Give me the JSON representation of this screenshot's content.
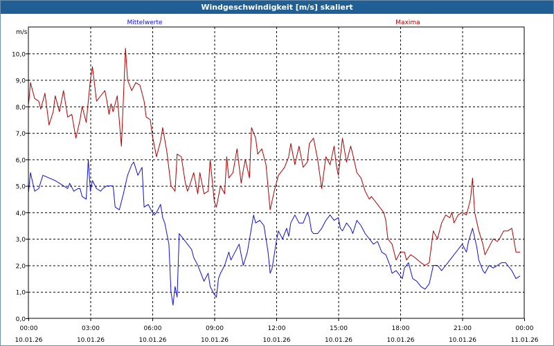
{
  "window": {
    "title": "Windgeschwindigkeit [m/s] skaliert"
  },
  "colors": {
    "title_bar": "#1f5f93",
    "mean": "#1010cc",
    "max": "#aa0000",
    "grid": "#000000"
  },
  "chart_data": {
    "type": "line",
    "title": "Windgeschwindigkeit [m/s] skaliert",
    "ylabel": "m/s",
    "xlabel": "",
    "ylim": [
      0,
      11
    ],
    "xlim": [
      0,
      24
    ],
    "grid": true,
    "yticks": [
      {
        "v": 0,
        "label": "0,0"
      },
      {
        "v": 1,
        "label": "1,0"
      },
      {
        "v": 2,
        "label": "2,0"
      },
      {
        "v": 3,
        "label": "3,0"
      },
      {
        "v": 4,
        "label": "4,0"
      },
      {
        "v": 5,
        "label": "5,0"
      },
      {
        "v": 6,
        "label": "6,0"
      },
      {
        "v": 7,
        "label": "7,0"
      },
      {
        "v": 8,
        "label": "8,0"
      },
      {
        "v": 9,
        "label": "9,0"
      },
      {
        "v": 10,
        "label": "10,0"
      }
    ],
    "xticks": [
      {
        "h": 0,
        "time": "00:00",
        "date": "10.01.26"
      },
      {
        "h": 3,
        "time": "03:00",
        "date": "10.01.26"
      },
      {
        "h": 6,
        "time": "06:00",
        "date": "10.01.26"
      },
      {
        "h": 9,
        "time": "09:00",
        "date": "10.01.26"
      },
      {
        "h": 12,
        "time": "12:00",
        "date": "10.01.26"
      },
      {
        "h": 15,
        "time": "15:00",
        "date": "10.01.26"
      },
      {
        "h": 18,
        "time": "18:00",
        "date": "10.01.26"
      },
      {
        "h": 21,
        "time": "21:00",
        "date": "10.01.26"
      },
      {
        "h": 24,
        "time": "00:00",
        "date": "11.01.26"
      }
    ],
    "series": [
      {
        "name": "Mittelwerte",
        "color": "#1010cc",
        "legend_position": "top-left",
        "points": [
          [
            0.0,
            4.7
          ],
          [
            0.1,
            5.5
          ],
          [
            0.3,
            4.8
          ],
          [
            0.5,
            4.9
          ],
          [
            0.7,
            5.4
          ],
          [
            1.0,
            5.3
          ],
          [
            1.3,
            5.2
          ],
          [
            1.5,
            5.1
          ],
          [
            1.7,
            5.0
          ],
          [
            1.9,
            4.9
          ],
          [
            2.0,
            5.1
          ],
          [
            2.2,
            4.8
          ],
          [
            2.4,
            4.9
          ],
          [
            2.5,
            4.9
          ],
          [
            2.6,
            4.6
          ],
          [
            2.8,
            4.5
          ],
          [
            2.9,
            6.0
          ],
          [
            3.0,
            4.8
          ],
          [
            3.1,
            5.2
          ],
          [
            3.3,
            4.9
          ],
          [
            3.5,
            4.8
          ],
          [
            3.6,
            4.9
          ],
          [
            3.8,
            5.0
          ],
          [
            4.0,
            5.0
          ],
          [
            4.1,
            5.0
          ],
          [
            4.2,
            4.2
          ],
          [
            4.4,
            4.1
          ],
          [
            4.6,
            4.7
          ],
          [
            4.8,
            5.4
          ],
          [
            5.0,
            5.8
          ],
          [
            5.1,
            5.9
          ],
          [
            5.3,
            5.4
          ],
          [
            5.5,
            5.7
          ],
          [
            5.6,
            4.2
          ],
          [
            5.8,
            4.3
          ],
          [
            6.0,
            4.0
          ],
          [
            6.1,
            3.9
          ],
          [
            6.2,
            4.0
          ],
          [
            6.4,
            4.3
          ],
          [
            6.5,
            3.8
          ],
          [
            6.6,
            3.6
          ],
          [
            6.8,
            2.8
          ],
          [
            6.9,
            1.0
          ],
          [
            7.0,
            0.5
          ],
          [
            7.1,
            1.2
          ],
          [
            7.2,
            0.8
          ],
          [
            7.3,
            3.2
          ],
          [
            7.5,
            3.0
          ],
          [
            7.7,
            2.8
          ],
          [
            7.9,
            2.6
          ],
          [
            8.0,
            2.3
          ],
          [
            8.2,
            2.0
          ],
          [
            8.3,
            1.8
          ],
          [
            8.5,
            1.4
          ],
          [
            8.7,
            1.7
          ],
          [
            8.8,
            1.2
          ],
          [
            9.0,
            0.9
          ],
          [
            9.1,
            0.8
          ],
          [
            9.2,
            1.5
          ],
          [
            9.3,
            1.7
          ],
          [
            9.5,
            2.0
          ],
          [
            9.7,
            2.5
          ],
          [
            9.8,
            2.2
          ],
          [
            10.0,
            2.5
          ],
          [
            10.2,
            2.8
          ],
          [
            10.4,
            2.0
          ],
          [
            10.6,
            2.5
          ],
          [
            10.9,
            3.9
          ],
          [
            11.0,
            3.6
          ],
          [
            11.2,
            3.7
          ],
          [
            11.4,
            3.5
          ],
          [
            11.6,
            2.5
          ],
          [
            11.7,
            1.7
          ],
          [
            11.8,
            1.9
          ],
          [
            12.0,
            2.9
          ],
          [
            12.1,
            3.3
          ],
          [
            12.3,
            3.0
          ],
          [
            12.5,
            3.4
          ],
          [
            12.6,
            3.1
          ],
          [
            12.7,
            3.6
          ],
          [
            12.9,
            3.9
          ],
          [
            13.1,
            3.6
          ],
          [
            13.3,
            3.6
          ],
          [
            13.5,
            4.0
          ],
          [
            13.6,
            3.8
          ],
          [
            13.7,
            3.3
          ],
          [
            13.8,
            3.2
          ],
          [
            14.0,
            3.2
          ],
          [
            14.2,
            3.4
          ],
          [
            14.4,
            3.7
          ],
          [
            14.6,
            3.9
          ],
          [
            14.8,
            3.7
          ],
          [
            15.0,
            3.8
          ],
          [
            15.1,
            3.4
          ],
          [
            15.2,
            3.3
          ],
          [
            15.4,
            3.6
          ],
          [
            15.6,
            3.4
          ],
          [
            15.7,
            3.2
          ],
          [
            15.9,
            3.7
          ],
          [
            16.1,
            3.5
          ],
          [
            16.3,
            3.2
          ],
          [
            16.5,
            3.0
          ],
          [
            16.7,
            2.8
          ],
          [
            16.9,
            2.9
          ],
          [
            17.1,
            2.5
          ],
          [
            17.3,
            2.4
          ],
          [
            17.5,
            2.0
          ],
          [
            17.6,
            1.7
          ],
          [
            17.8,
            1.8
          ],
          [
            18.0,
            1.6
          ],
          [
            18.1,
            1.5
          ],
          [
            18.2,
            1.9
          ],
          [
            18.4,
            2.1
          ],
          [
            18.6,
            1.5
          ],
          [
            18.8,
            1.4
          ],
          [
            19.0,
            1.2
          ],
          [
            19.2,
            1.1
          ],
          [
            19.4,
            1.3
          ],
          [
            19.6,
            2.0
          ],
          [
            19.8,
            2.0
          ],
          [
            20.0,
            1.8
          ],
          [
            20.2,
            2.0
          ],
          [
            20.4,
            2.2
          ],
          [
            20.6,
            2.4
          ],
          [
            20.8,
            2.6
          ],
          [
            21.0,
            2.8
          ],
          [
            21.2,
            2.5
          ],
          [
            21.3,
            2.9
          ],
          [
            21.5,
            3.4
          ],
          [
            21.7,
            2.7
          ],
          [
            21.8,
            2.2
          ],
          [
            22.0,
            1.8
          ],
          [
            22.1,
            1.7
          ],
          [
            22.3,
            2.0
          ],
          [
            22.5,
            1.9
          ],
          [
            22.7,
            2.0
          ],
          [
            22.9,
            2.1
          ],
          [
            23.1,
            2.1
          ],
          [
            23.2,
            2.0
          ],
          [
            23.4,
            1.8
          ],
          [
            23.6,
            1.5
          ],
          [
            23.8,
            1.6
          ]
        ]
      },
      {
        "name": "Maxima",
        "color": "#aa0000",
        "legend_position": "top-right",
        "points": [
          [
            0.0,
            8.0
          ],
          [
            0.1,
            8.9
          ],
          [
            0.3,
            8.3
          ],
          [
            0.5,
            8.2
          ],
          [
            0.6,
            7.9
          ],
          [
            0.8,
            8.5
          ],
          [
            1.0,
            7.3
          ],
          [
            1.2,
            7.8
          ],
          [
            1.3,
            8.4
          ],
          [
            1.5,
            7.8
          ],
          [
            1.7,
            8.6
          ],
          [
            1.9,
            7.6
          ],
          [
            2.1,
            7.7
          ],
          [
            2.3,
            6.8
          ],
          [
            2.5,
            7.5
          ],
          [
            2.6,
            8.0
          ],
          [
            2.8,
            7.4
          ],
          [
            3.0,
            9.0
          ],
          [
            3.1,
            9.5
          ],
          [
            3.3,
            8.2
          ],
          [
            3.5,
            8.4
          ],
          [
            3.7,
            8.6
          ],
          [
            3.8,
            8.2
          ],
          [
            3.9,
            7.7
          ],
          [
            4.0,
            8.1
          ],
          [
            4.1,
            7.8
          ],
          [
            4.3,
            8.4
          ],
          [
            4.5,
            6.5
          ],
          [
            4.7,
            10.2
          ],
          [
            4.8,
            9.0
          ],
          [
            5.0,
            8.6
          ],
          [
            5.2,
            8.9
          ],
          [
            5.4,
            8.8
          ],
          [
            5.6,
            8.2
          ],
          [
            5.7,
            7.6
          ],
          [
            5.9,
            7.5
          ],
          [
            6.0,
            6.9
          ],
          [
            6.2,
            6.1
          ],
          [
            6.4,
            6.7
          ],
          [
            6.5,
            7.2
          ],
          [
            6.7,
            6.3
          ],
          [
            6.9,
            5.0
          ],
          [
            7.1,
            4.8
          ],
          [
            7.2,
            6.2
          ],
          [
            7.4,
            6.1
          ],
          [
            7.6,
            5.1
          ],
          [
            7.7,
            4.8
          ],
          [
            7.8,
            5.0
          ],
          [
            8.0,
            5.5
          ],
          [
            8.2,
            4.7
          ],
          [
            8.3,
            5.5
          ],
          [
            8.5,
            4.7
          ],
          [
            8.7,
            4.8
          ],
          [
            8.8,
            6.0
          ],
          [
            9.0,
            4.4
          ],
          [
            9.1,
            4.2
          ],
          [
            9.3,
            5.0
          ],
          [
            9.5,
            4.7
          ],
          [
            9.6,
            6.1
          ],
          [
            9.7,
            5.3
          ],
          [
            9.9,
            5.5
          ],
          [
            10.1,
            6.4
          ],
          [
            10.3,
            5.1
          ],
          [
            10.4,
            5.6
          ],
          [
            10.5,
            6.0
          ],
          [
            10.7,
            5.3
          ],
          [
            10.8,
            7.2
          ],
          [
            11.0,
            6.8
          ],
          [
            11.1,
            6.2
          ],
          [
            11.3,
            6.4
          ],
          [
            11.5,
            5.8
          ],
          [
            11.7,
            4.1
          ],
          [
            11.9,
            4.8
          ],
          [
            12.1,
            5.4
          ],
          [
            12.3,
            5.6
          ],
          [
            12.4,
            5.7
          ],
          [
            12.6,
            6.1
          ],
          [
            12.7,
            6.6
          ],
          [
            12.9,
            5.8
          ],
          [
            13.1,
            6.5
          ],
          [
            13.3,
            5.7
          ],
          [
            13.5,
            5.9
          ],
          [
            13.6,
            6.6
          ],
          [
            13.8,
            6.8
          ],
          [
            14.0,
            6.0
          ],
          [
            14.2,
            4.9
          ],
          [
            14.4,
            6.1
          ],
          [
            14.6,
            5.8
          ],
          [
            14.8,
            6.5
          ],
          [
            14.9,
            5.8
          ],
          [
            15.0,
            5.4
          ],
          [
            15.1,
            6.1
          ],
          [
            15.2,
            6.8
          ],
          [
            15.4,
            5.9
          ],
          [
            15.6,
            6.5
          ],
          [
            15.7,
            6.2
          ],
          [
            15.9,
            5.5
          ],
          [
            16.1,
            5.3
          ],
          [
            16.3,
            4.8
          ],
          [
            16.5,
            4.5
          ],
          [
            16.6,
            4.6
          ],
          [
            16.8,
            4.4
          ],
          [
            17.0,
            4.2
          ],
          [
            17.2,
            4.0
          ],
          [
            17.3,
            3.7
          ],
          [
            17.4,
            3.0
          ],
          [
            17.6,
            2.8
          ],
          [
            17.8,
            2.2
          ],
          [
            18.0,
            2.5
          ],
          [
            18.2,
            2.5
          ],
          [
            18.3,
            2.2
          ],
          [
            18.5,
            2.4
          ],
          [
            18.7,
            2.3
          ],
          [
            19.0,
            2.1
          ],
          [
            19.2,
            2.0
          ],
          [
            19.4,
            2.1
          ],
          [
            19.6,
            3.3
          ],
          [
            19.8,
            3.0
          ],
          [
            20.0,
            3.6
          ],
          [
            20.2,
            3.9
          ],
          [
            20.4,
            3.8
          ],
          [
            20.5,
            4.0
          ],
          [
            20.6,
            3.6
          ],
          [
            20.8,
            3.9
          ],
          [
            21.0,
            4.0
          ],
          [
            21.2,
            3.9
          ],
          [
            21.4,
            4.5
          ],
          [
            21.5,
            5.3
          ],
          [
            21.6,
            4.0
          ],
          [
            21.8,
            3.3
          ],
          [
            22.0,
            2.8
          ],
          [
            22.1,
            2.4
          ],
          [
            22.3,
            2.7
          ],
          [
            22.5,
            3.0
          ],
          [
            22.7,
            2.9
          ],
          [
            22.8,
            3.0
          ],
          [
            23.0,
            3.3
          ],
          [
            23.2,
            3.3
          ],
          [
            23.4,
            3.4
          ],
          [
            23.6,
            2.5
          ],
          [
            23.8,
            2.5
          ]
        ]
      }
    ]
  }
}
